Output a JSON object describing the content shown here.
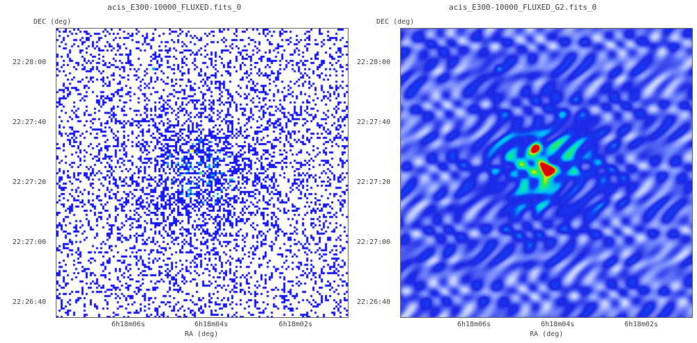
{
  "panels": [
    {
      "title": "acis_E300-10000_FLUXED.fits_0",
      "y_axis_label": "DEC (deg)",
      "x_axis_label": "RA (deg)",
      "y_ticks": [
        "22:28:00",
        "22:27:40",
        "22:27:20",
        "22:27:00",
        "22:26:40"
      ],
      "x_ticks": [
        "6h18m06s",
        "6h18m04s",
        "6h18m02s"
      ],
      "colormap": [
        "#ffffff",
        "#1a1aff",
        "#00aaff",
        "#00ff66",
        "#ffff00",
        "#ff0000"
      ]
    },
    {
      "title": "acis_E300-10000_FLUXED_G2.fits_0",
      "y_axis_label": "DEC (deg)",
      "x_axis_label": "RA (deg)",
      "y_ticks": [
        "22:28:00",
        "22:27:40",
        "22:27:20",
        "22:27:00",
        "22:26:40"
      ],
      "x_ticks": [
        "6h18m06s",
        "6h18m04s",
        "6h18m02s"
      ],
      "colormap": [
        "#ffffff",
        "#1a1aff",
        "#00aaff",
        "#00ff66",
        "#ffff00",
        "#ff0000"
      ]
    }
  ]
}
